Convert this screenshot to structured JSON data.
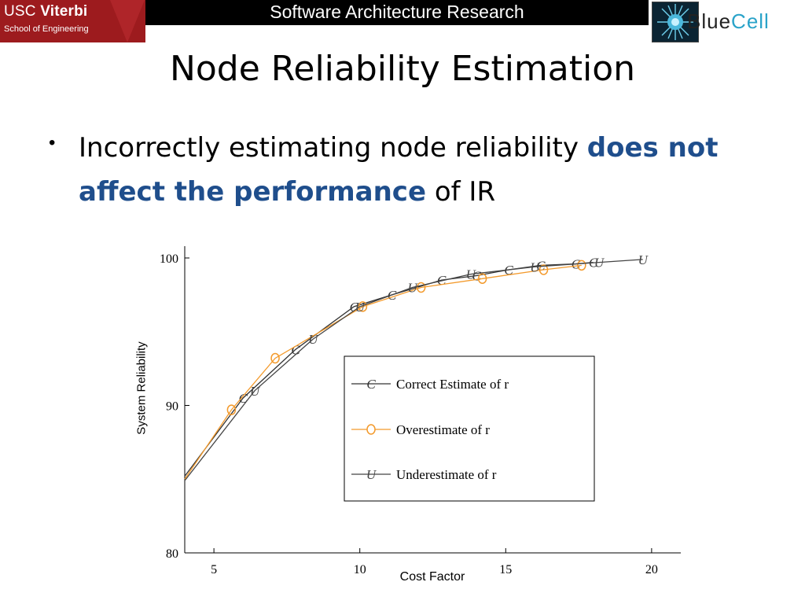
{
  "header": {
    "org_line1_bold": "USC",
    "org_line1_rest": "Viterbi",
    "org_line2": "School of Engineering",
    "title": "Software Architecture Research",
    "logo_part1": "Blue",
    "logo_part2": "Cell"
  },
  "slide": {
    "title": "Node Reliability Estimation",
    "bullet_plain1": "Incorrectly estimating node reliability ",
    "bullet_emph1": "does not",
    "bullet_emph2": "affect the performance",
    "bullet_plain2": " of IR"
  },
  "colors": {
    "usc_red": "#9d1b1e",
    "emphasis_blue": "#1f4e8c",
    "overestimate_orange": "#f39a2c",
    "series_dark": "#333333"
  },
  "chart_data": {
    "type": "line",
    "xlabel": "Cost Factor",
    "ylabel": "System Reliability",
    "xlim": [
      4,
      21
    ],
    "ylim": [
      80,
      100.8
    ],
    "xticks": [
      5,
      10,
      15,
      20
    ],
    "yticks": [
      80,
      90,
      100
    ],
    "legend_position": "center-right",
    "series": [
      {
        "name": "Correct Estimate of r",
        "marker": "C",
        "color": "#333333",
        "points": [
          [
            4,
            85.2
          ],
          [
            6,
            90.5
          ],
          [
            7.8,
            93.8
          ],
          [
            9.8,
            96.7
          ],
          [
            11.1,
            97.5
          ],
          [
            12.8,
            98.5
          ],
          [
            14,
            98.8
          ],
          [
            15.1,
            99.2
          ],
          [
            16.2,
            99.5
          ],
          [
            17.4,
            99.6
          ],
          [
            18,
            99.7
          ]
        ]
      },
      {
        "name": "Overestimate of r",
        "marker": "O",
        "color": "#f39a2c",
        "points": [
          [
            4,
            85.0
          ],
          [
            5.6,
            89.7
          ],
          [
            7.1,
            93.2
          ],
          [
            10.1,
            96.7
          ],
          [
            12.1,
            98.0
          ],
          [
            14.2,
            98.6
          ],
          [
            16.3,
            99.2
          ],
          [
            17.6,
            99.5
          ]
        ]
      },
      {
        "name": "Underestimate of r",
        "marker": "U",
        "color": "#444444",
        "points": [
          [
            4,
            84.9
          ],
          [
            6.4,
            91.0
          ],
          [
            8.4,
            94.5
          ],
          [
            10,
            96.7
          ],
          [
            11.8,
            98.0
          ],
          [
            13.8,
            98.9
          ],
          [
            16,
            99.4
          ],
          [
            18.2,
            99.7
          ],
          [
            19.7,
            99.9
          ]
        ]
      }
    ]
  }
}
